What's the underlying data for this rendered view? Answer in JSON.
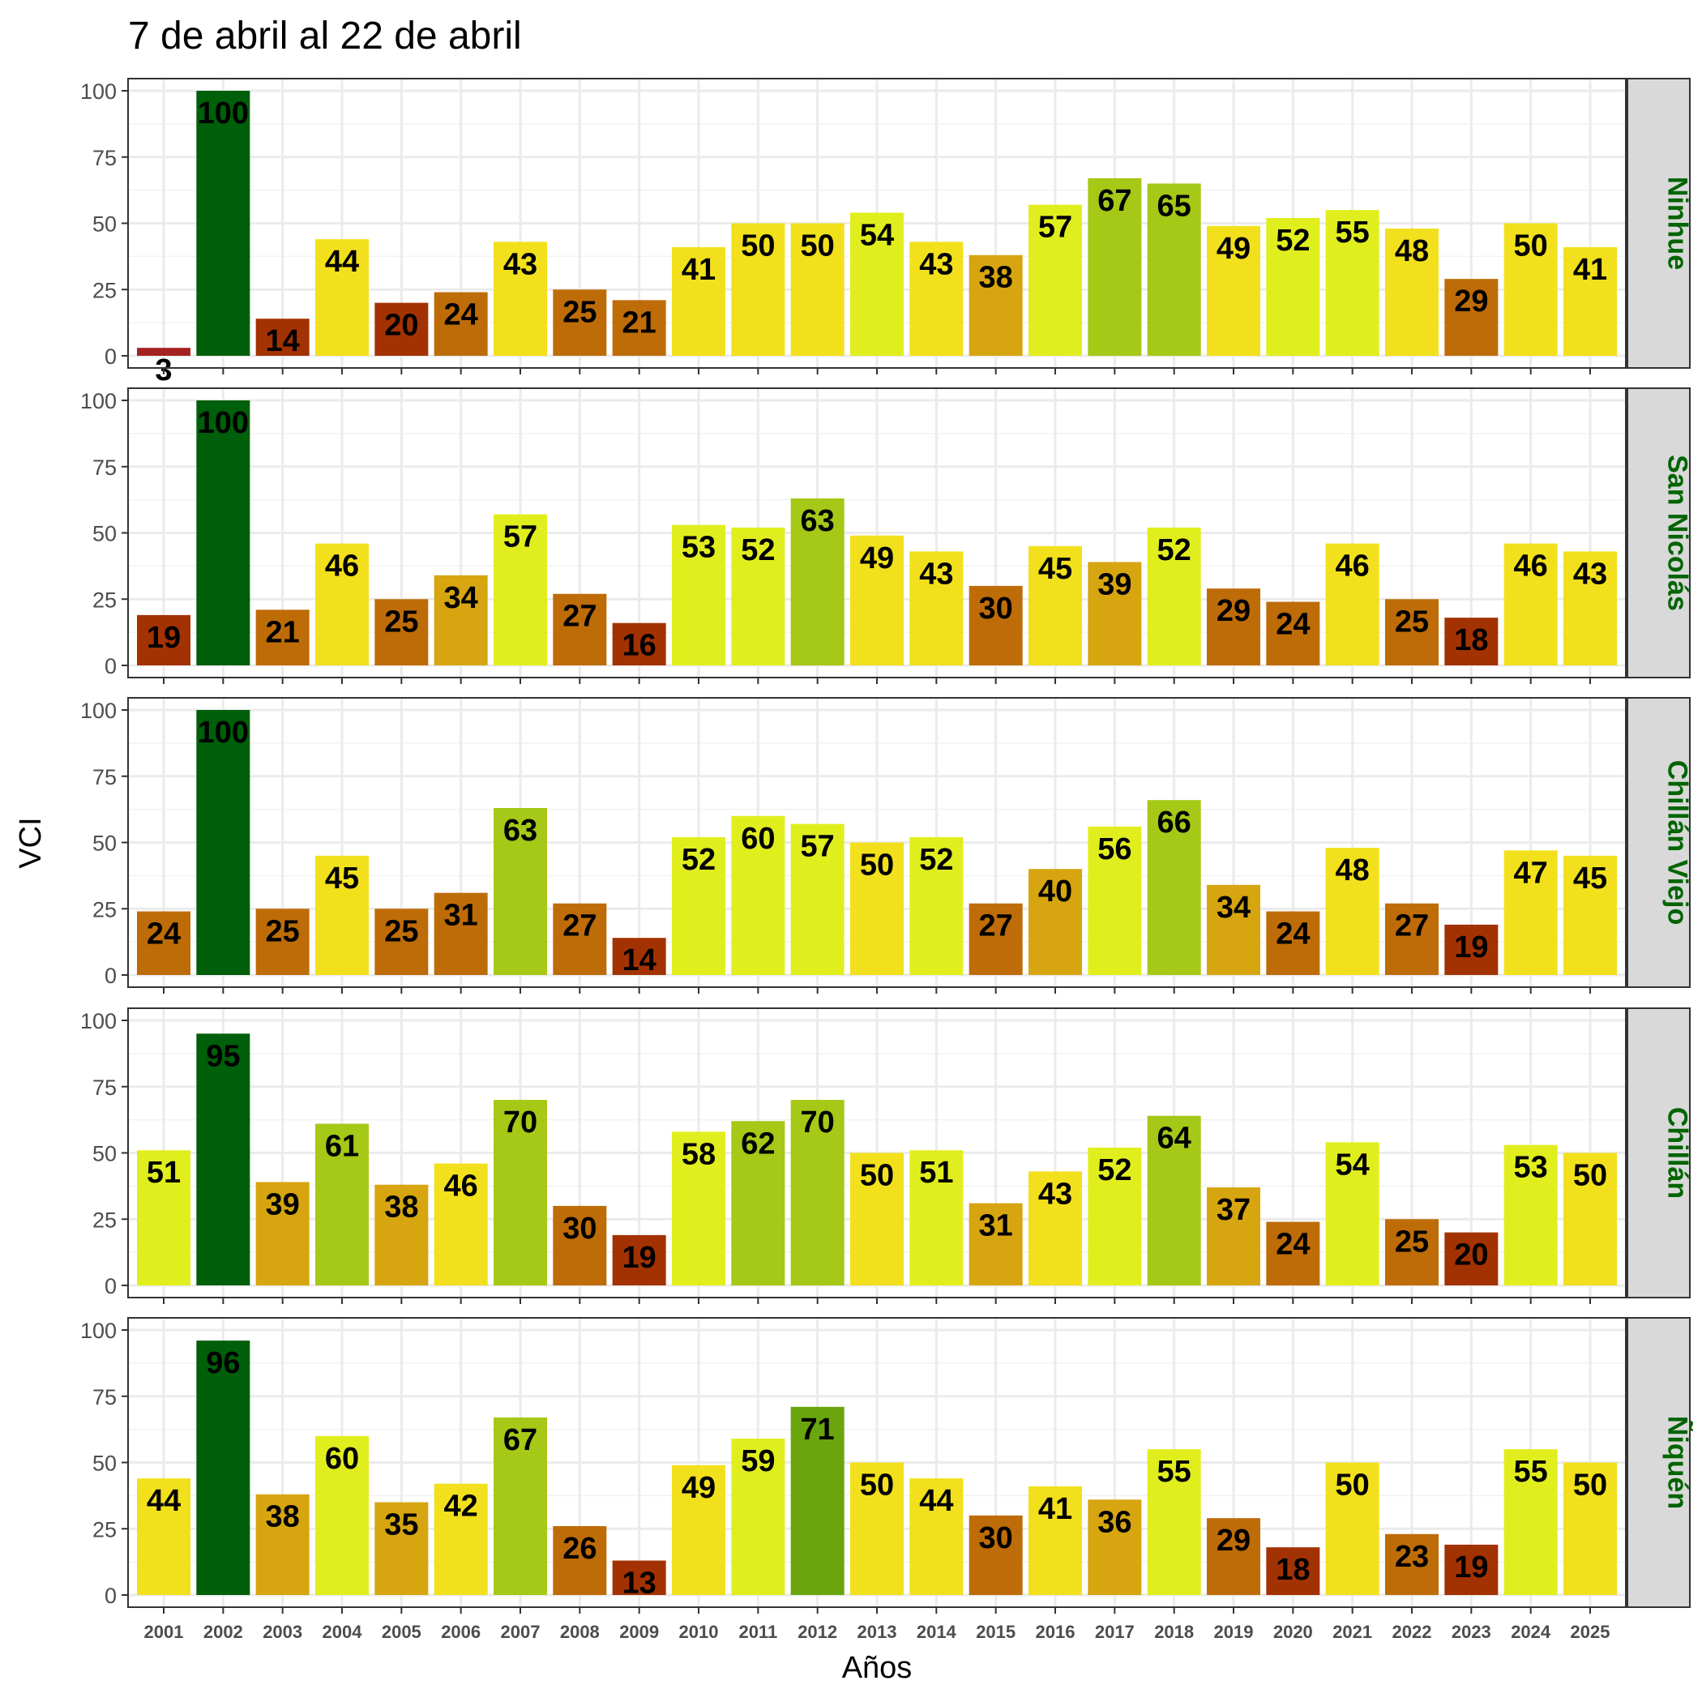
{
  "chart_data": {
    "type": "bar",
    "title": "7 de abril al 22 de abril",
    "xlabel": "Años",
    "ylabel": "VCI",
    "ylim": [
      0,
      100
    ],
    "yticks": [
      "0",
      "25",
      "50",
      "75",
      "100"
    ],
    "categories": [
      "2001",
      "2002",
      "2003",
      "2004",
      "2005",
      "2006",
      "2007",
      "2008",
      "2009",
      "2010",
      "2011",
      "2012",
      "2013",
      "2014",
      "2015",
      "2016",
      "2017",
      "2018",
      "2019",
      "2020",
      "2021",
      "2022",
      "2023",
      "2024",
      "2025"
    ],
    "grid": true,
    "legend": "none",
    "panels": [
      {
        "name": "Ninhue",
        "values": [
          3,
          100,
          14,
          44,
          20,
          24,
          43,
          25,
          21,
          41,
          50,
          50,
          54,
          43,
          38,
          57,
          67,
          65,
          49,
          52,
          55,
          48,
          29,
          50,
          41
        ],
        "colors": [
          "#a52222",
          "#005f0a",
          "#a33202",
          "#f2e01c",
          "#a33202",
          "#be6c08",
          "#f2e01c",
          "#be6c08",
          "#be6c08",
          "#f2e01c",
          "#f2e01c",
          "#f2e01c",
          "#e1ee1e",
          "#f2e01c",
          "#d6a510",
          "#e1ee1e",
          "#a6c816",
          "#a6c816",
          "#f2e01c",
          "#e1ee1e",
          "#e1ee1e",
          "#f2e01c",
          "#be6c08",
          "#f2e01c",
          "#f2e01c"
        ]
      },
      {
        "name": "San Nicolás",
        "values": [
          19,
          100,
          21,
          46,
          25,
          34,
          57,
          27,
          16,
          53,
          52,
          63,
          49,
          43,
          30,
          45,
          39,
          52,
          29,
          24,
          46,
          25,
          18,
          46,
          43
        ],
        "colors": [
          "#a33202",
          "#005f0a",
          "#be6c08",
          "#f2e01c",
          "#be6c08",
          "#d6a510",
          "#e1ee1e",
          "#be6c08",
          "#a33202",
          "#e1ee1e",
          "#e1ee1e",
          "#a6c816",
          "#f2e01c",
          "#f2e01c",
          "#be6c08",
          "#f2e01c",
          "#d6a510",
          "#e1ee1e",
          "#be6c08",
          "#be6c08",
          "#f2e01c",
          "#be6c08",
          "#a33202",
          "#f2e01c",
          "#f2e01c"
        ]
      },
      {
        "name": "Chillán Viejo",
        "values": [
          24,
          100,
          25,
          45,
          25,
          31,
          63,
          27,
          14,
          52,
          60,
          57,
          50,
          52,
          27,
          40,
          56,
          66,
          34,
          24,
          48,
          27,
          19,
          47,
          45
        ],
        "colors": [
          "#be6c08",
          "#005f0a",
          "#be6c08",
          "#f2e01c",
          "#be6c08",
          "#be6c08",
          "#a6c816",
          "#be6c08",
          "#a33202",
          "#e1ee1e",
          "#e1ee1e",
          "#e1ee1e",
          "#f2e01c",
          "#e1ee1e",
          "#be6c08",
          "#d6a510",
          "#e1ee1e",
          "#a6c816",
          "#d6a510",
          "#be6c08",
          "#f2e01c",
          "#be6c08",
          "#a33202",
          "#f2e01c",
          "#f2e01c"
        ]
      },
      {
        "name": "Chillán",
        "values": [
          51,
          95,
          39,
          61,
          38,
          46,
          70,
          30,
          19,
          58,
          62,
          70,
          50,
          51,
          31,
          43,
          52,
          64,
          37,
          24,
          54,
          25,
          20,
          53,
          50
        ],
        "colors": [
          "#e1ee1e",
          "#005f0a",
          "#d6a510",
          "#a6c816",
          "#d6a510",
          "#f2e01c",
          "#a6c816",
          "#be6c08",
          "#a33202",
          "#e1ee1e",
          "#a6c816",
          "#a6c816",
          "#f2e01c",
          "#e1ee1e",
          "#d6a510",
          "#f2e01c",
          "#e1ee1e",
          "#a6c816",
          "#d6a510",
          "#be6c08",
          "#e1ee1e",
          "#be6c08",
          "#a33202",
          "#e1ee1e",
          "#f2e01c"
        ]
      },
      {
        "name": "Ñiquén",
        "values": [
          44,
          96,
          38,
          60,
          35,
          42,
          67,
          26,
          13,
          49,
          59,
          71,
          50,
          44,
          30,
          41,
          36,
          55,
          29,
          18,
          50,
          23,
          19,
          55,
          50
        ],
        "colors": [
          "#f2e01c",
          "#005f0a",
          "#d6a510",
          "#e1ee1e",
          "#d6a510",
          "#f2e01c",
          "#a6c816",
          "#be6c08",
          "#a33202",
          "#f2e01c",
          "#e1ee1e",
          "#6aa50e",
          "#f2e01c",
          "#f2e01c",
          "#be6c08",
          "#f2e01c",
          "#d6a510",
          "#e1ee1e",
          "#be6c08",
          "#a33202",
          "#f2e01c",
          "#be6c08",
          "#a33202",
          "#e1ee1e",
          "#f2e01c"
        ]
      }
    ]
  }
}
